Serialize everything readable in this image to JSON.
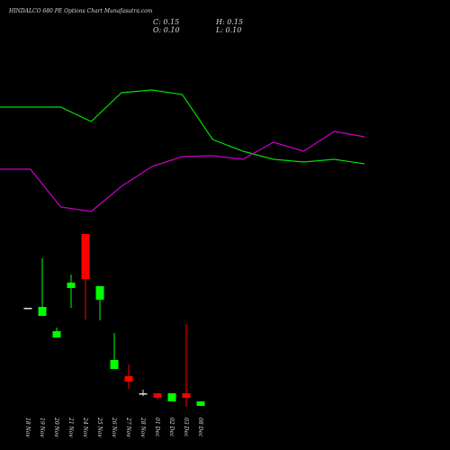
{
  "chart_data": {
    "type": "candlestick",
    "title": "HINDALCO 680 PE Options Chart Munafasutra.com",
    "summary": {
      "close": "C: 0.15",
      "high": "H: 0.15",
      "open": "O: 0.10",
      "low": "L: 0.10"
    },
    "categories": [
      "18 Nov",
      "19 Nov",
      "20 Nov",
      "21 Nov",
      "24 Nov",
      "25 Nov",
      "26 Nov",
      "27 Nov",
      "28 Nov",
      "01 Dec",
      "02 Dec",
      "03 Dec",
      "08 Dec"
    ],
    "open": [
      1.19,
      1.1,
      0.86,
      1.41,
      2.01,
      1.28,
      0.51,
      0.43,
      0.24,
      0.24,
      0.15,
      0.24,
      0.1
    ],
    "high": [
      1.19,
      1.74,
      0.97,
      1.56,
      2.01,
      1.43,
      0.91,
      0.56,
      0.28,
      0.24,
      0.24,
      1.01,
      0.15
    ],
    "low": [
      1.19,
      1.1,
      0.86,
      1.19,
      1.06,
      1.05,
      0.51,
      0.29,
      0.21,
      0.17,
      0.15,
      0.09,
      0.1
    ],
    "close": [
      1.19,
      1.2,
      0.93,
      1.47,
      1.51,
      1.43,
      0.61,
      0.37,
      0.24,
      0.19,
      0.24,
      0.19,
      0.15
    ],
    "ylim": [
      0,
      2.2
    ],
    "up_color": "#00ff00",
    "down_color": "#ff0000",
    "flat_color": "#e0e0e0",
    "series": [
      {
        "color": "#00dd00",
        "axis": "y2",
        "values": [
          181,
          181,
          181,
          165,
          197,
          200,
          195,
          145,
          132,
          123,
          120,
          123,
          118
        ]
      },
      {
        "color": "#cc00cc",
        "axis": "y2",
        "values": [
          112,
          112,
          70,
          65,
          93,
          115,
          126,
          127,
          123,
          142,
          132,
          154,
          148
        ]
      }
    ],
    "y2lim": [
      0,
      300
    ]
  }
}
